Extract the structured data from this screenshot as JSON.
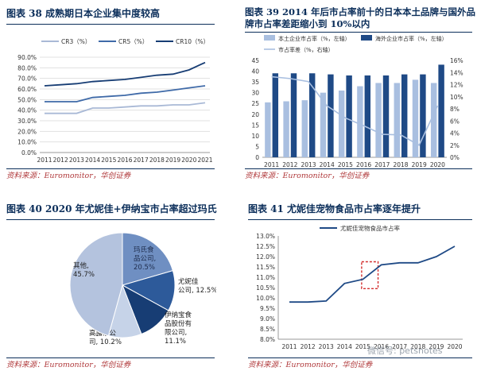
{
  "chart_data": [
    {
      "type": "line",
      "title": "图表 38 成熟期日本企业集中度较高",
      "source": "资料来源：Euromonitor，华创证券",
      "x": [
        "2011",
        "2012",
        "2013",
        "2014",
        "2015",
        "2016",
        "2017",
        "2018",
        "2019",
        "2020",
        "2021"
      ],
      "ylim": [
        0,
        90
      ],
      "yticks": [
        "0.0%",
        "10.0%",
        "20.0%",
        "30.0%",
        "40.0%",
        "50.0%",
        "60.0%",
        "70.0%",
        "80.0%",
        "90.0%"
      ],
      "grid": true,
      "legend_position": "top",
      "series": [
        {
          "name": "CR3（%）",
          "color": "#a9b9d6",
          "values": [
            37,
            37,
            37,
            42,
            42,
            43,
            44,
            44,
            45,
            45,
            47
          ]
        },
        {
          "name": "CR5（%）",
          "color": "#3f6aa8",
          "values": [
            48,
            48,
            48,
            52,
            53,
            54,
            56,
            57,
            59,
            61,
            63
          ]
        },
        {
          "name": "CR10（%）",
          "color": "#173d74",
          "values": [
            63,
            64,
            65,
            67,
            68,
            69,
            71,
            73,
            74,
            78,
            85
          ]
        }
      ]
    },
    {
      "type": "bar",
      "title_line1": "图表 39 2014 年后市占率前十的日本本土品牌与国外品",
      "title_line2": "牌市占率差距缩小到 10%以内",
      "source": "资料来源：Euromonitor，华创证券",
      "categories": [
        "2011",
        "2012",
        "2013",
        "2014",
        "2015",
        "2016",
        "2017",
        "2018",
        "2019",
        "2020"
      ],
      "ylim_left": [
        0,
        45
      ],
      "yticks_left": [
        "0",
        "5",
        "10",
        "15",
        "20",
        "25",
        "30",
        "35",
        "40",
        "45"
      ],
      "ylim_right": [
        0,
        16
      ],
      "yticks_right": [
        "0%",
        "2%",
        "4%",
        "6%",
        "8%",
        "10%",
        "12%",
        "14%",
        "16%"
      ],
      "legend_position": "top",
      "series": [
        {
          "name": "本土企业市占率（%，左轴）",
          "color": "#a9bfe0",
          "type": "bar",
          "axis": "left",
          "values": [
            25.5,
            26,
            26.5,
            30,
            31,
            33,
            34.5,
            34.5,
            36,
            34.5
          ]
        },
        {
          "name": "海外企业市占率（%，左轴）",
          "color": "#1f4a86",
          "type": "bar",
          "axis": "left",
          "values": [
            39,
            39,
            39,
            38.5,
            38,
            38,
            38,
            38.5,
            38.5,
            43
          ]
        },
        {
          "name": "市占率差（%，右轴）",
          "color": "#a9bfe0",
          "type": "line",
          "axis": "right",
          "values": [
            13.3,
            13,
            12.5,
            8.5,
            6.5,
            5.2,
            3.8,
            3.7,
            2.0,
            8.5
          ]
        }
      ]
    },
    {
      "type": "pie",
      "title": "图表 40 2020 年尤妮佳+伊纳宝市占率超过玛氏",
      "source": "资料来源：Euromonitor，华创证券",
      "slices": [
        {
          "label_lines": [
            "玛氏食",
            "品公司,",
            "20.5%"
          ],
          "value": 20.5,
          "color": "#6f8fc2"
        },
        {
          "label_lines": [
            "尤妮佳",
            "公司, 12.5%"
          ],
          "value": 12.5,
          "color": "#2d5a9a"
        },
        {
          "label_lines": [
            "伊纳宝食",
            "品股份有",
            "限公司,",
            "11.1%"
          ],
          "value": 11.1,
          "color": "#173d74"
        },
        {
          "label_lines": [
            "高露洁公",
            "司, 10.2%"
          ],
          "value": 10.2,
          "color": "#c6d3e8"
        },
        {
          "label_lines": [
            "其他,",
            "45.7%"
          ],
          "value": 45.7,
          "color": "#b4c3de"
        }
      ]
    },
    {
      "type": "line",
      "title": "图表 41 尤妮佳宠物食品市占率逐年提升",
      "source": "资料来源：Euromonitor，华创证券",
      "x": [
        "2011",
        "2012",
        "2013",
        "2014",
        "2015",
        "2016",
        "2017",
        "2018",
        "2019",
        "2020"
      ],
      "ylim": [
        8,
        13
      ],
      "yticks": [
        "8.0%",
        "8.5%",
        "9.0%",
        "9.5%",
        "10.0%",
        "10.5%",
        "11.0%",
        "11.5%",
        "12.0%",
        "12.5%",
        "13.0%"
      ],
      "grid": false,
      "legend_position": "top",
      "highlight_range": [
        "2015",
        "2016"
      ],
      "series": [
        {
          "name": "尤妮佳宠物食品市占率",
          "color": "#1f4a86",
          "values": [
            9.8,
            9.8,
            9.85,
            10.7,
            10.9,
            11.6,
            11.7,
            11.7,
            12.0,
            12.5
          ]
        }
      ]
    }
  ],
  "watermark": "微信号: petsnotes"
}
